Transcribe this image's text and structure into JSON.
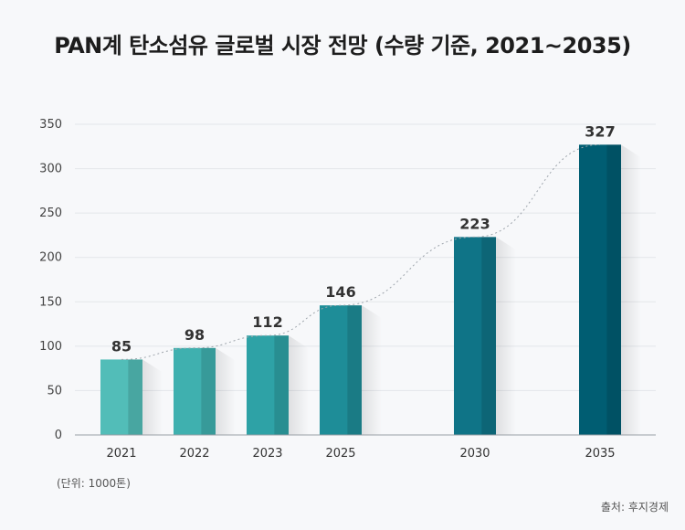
{
  "chart_data": {
    "type": "bar",
    "title": "PAN계 탄소섬유 글로벌 시장 전망 (수량 기준, 2021~2035)",
    "categories": [
      "2021",
      "2022",
      "2023",
      "2025",
      "2030",
      "2035"
    ],
    "values": [
      85,
      98,
      112,
      146,
      223,
      327
    ],
    "data_labels": [
      "85",
      "98",
      "112",
      "146",
      "223",
      "327"
    ],
    "y_ticks": [
      0,
      50,
      100,
      150,
      200,
      250,
      300,
      350
    ],
    "ylim": [
      0,
      350
    ],
    "grid": true,
    "trend_line": "dotted",
    "bar_colors": [
      "#52bdb8",
      "#3fb0af",
      "#2ea2a6",
      "#1e8d98",
      "#0f7487",
      "#005d72"
    ],
    "unit_note": "(단위: 1000톤)",
    "source_note": "출처: 후지경제"
  }
}
